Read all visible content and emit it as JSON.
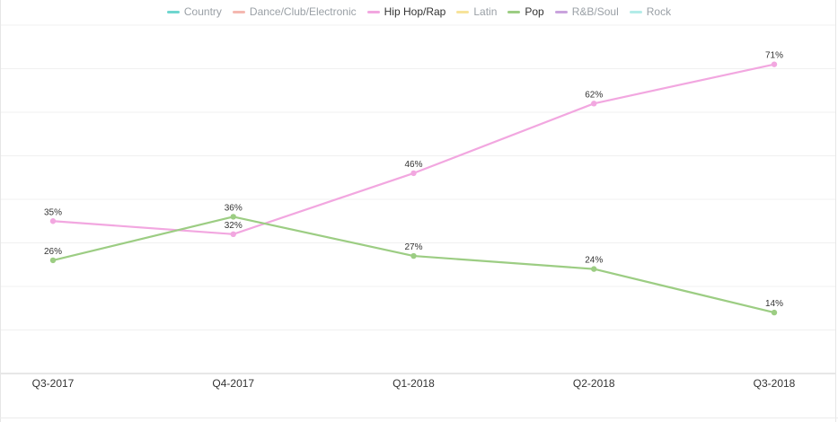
{
  "legend": [
    {
      "name": "Country",
      "color": "#6fd6cf",
      "active": false
    },
    {
      "name": "Dance/Club/Electronic",
      "color": "#f5b8b0",
      "active": false
    },
    {
      "name": "Hip Hop/Rap",
      "color": "#f2a7e0",
      "active": true
    },
    {
      "name": "Latin",
      "color": "#f7e39a",
      "active": false
    },
    {
      "name": "Pop",
      "color": "#9ccd83",
      "active": true
    },
    {
      "name": "R&B/Soul",
      "color": "#c9a3dd",
      "active": false
    },
    {
      "name": "Rock",
      "color": "#b3ece8",
      "active": false
    }
  ],
  "chart_data": {
    "type": "line",
    "categories": [
      "Q3-2017",
      "Q4-2017",
      "Q1-2018",
      "Q2-2018",
      "Q3-2018"
    ],
    "series": [
      {
        "name": "Hip Hop/Rap",
        "color": "#f2a7e0",
        "values": [
          35,
          32,
          46,
          62,
          71
        ],
        "labels": [
          "35%",
          "32%",
          "46%",
          "62%",
          "71%"
        ]
      },
      {
        "name": "Pop",
        "color": "#9ccd83",
        "values": [
          26,
          36,
          27,
          24,
          14
        ],
        "labels": [
          "26%",
          "36%",
          "27%",
          "24%",
          "14%"
        ]
      }
    ],
    "ylim": [
      0,
      80
    ],
    "grid": true,
    "legend_position": "top-center"
  }
}
